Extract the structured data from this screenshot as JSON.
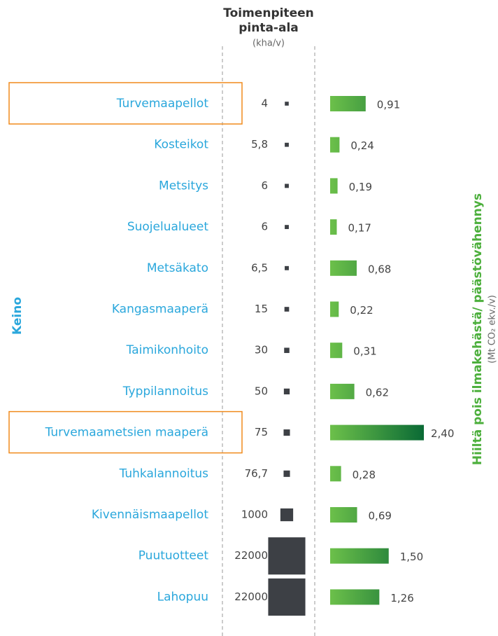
{
  "chart_data": {
    "type": "paired-bar",
    "y_label": "Keino",
    "categories": [
      "Turvemaapellot",
      "Kosteikot",
      "Metsitys",
      "Suojelualueet",
      "Metsäkato",
      "Kangasmaaperä",
      "Taimikonhoito",
      "Typpilannoitus",
      "Turvemaametsien maaperä",
      "Tuhkalannoitus",
      "Kivennäismaapellot",
      "Puutuotteet",
      "Lahopuu"
    ],
    "highlight": [
      0,
      8
    ],
    "highlight_color": "#f08a1c",
    "area": {
      "title": [
        "Toimenpiteen",
        "pinta-ala"
      ],
      "unit": "(kha/v)",
      "color": "#3d4045",
      "values": [
        4,
        5.8,
        6,
        6,
        6.5,
        15,
        30,
        50,
        75,
        76.7,
        1000,
        22000,
        22000
      ],
      "value_labels": [
        "4",
        "5,8",
        "6",
        "6",
        "6,5",
        "15",
        "30",
        "50",
        "75",
        "76,7",
        "1000",
        "22000",
        "22000"
      ]
    },
    "reduction": {
      "title": "Hiiltä pois ilmakehästä/ päästövähennys",
      "unit": "(Mt CO₂ ekv./v)",
      "color": [
        "#6cc04a",
        "#0a6a35"
      ],
      "values": [
        0.91,
        0.24,
        0.19,
        0.17,
        0.68,
        0.22,
        0.31,
        0.62,
        2.4,
        0.28,
        0.69,
        1.5,
        1.26
      ],
      "value_labels": [
        "0,91",
        "0,24",
        "0,19",
        "0,17",
        "0,68",
        "0,22",
        "0,31",
        "0,62",
        "2,40",
        "0,28",
        "0,69",
        "1,50",
        "1,26"
      ]
    }
  }
}
